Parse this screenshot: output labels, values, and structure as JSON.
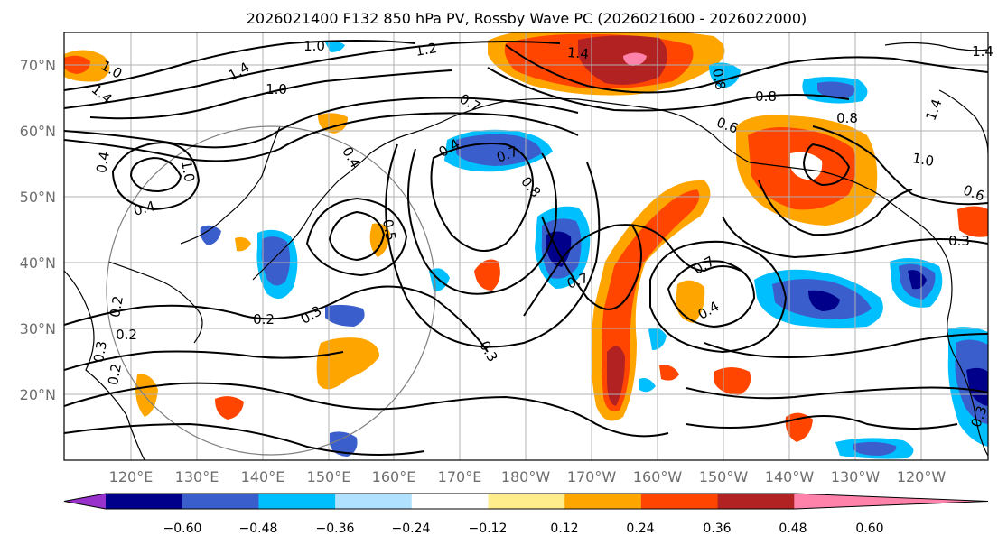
{
  "title": "2026021400 F132 850 hPa PV, Rossby Wave PC (2026021600 - 2026022000)",
  "lat_labels": [
    "70°N",
    "60°N",
    "50°N",
    "40°N",
    "30°N",
    "20°N"
  ],
  "lon_labels": [
    "120°E",
    "130°E",
    "140°E",
    "150°E",
    "160°E",
    "170°E",
    "180°W",
    "170°W",
    "160°W",
    "150°W",
    "140°W",
    "130°W",
    "120°W"
  ],
  "colorbar": {
    "ticks": [
      "−0.60",
      "−0.48",
      "−0.36",
      "−0.24",
      "−0.12",
      "0.12",
      "0.24",
      "0.36",
      "0.48",
      "0.60"
    ],
    "colors": [
      "#9932cc",
      "#00008b",
      "#3a5fcd",
      "#00bfff",
      "#b0e2ff",
      "#ffffff",
      "#ffec8b",
      "#ffa500",
      "#ff4500",
      "#b22222",
      "#ff82ab"
    ]
  },
  "contour_labels": [
    "1.0",
    "1.2",
    "1.4",
    "1.4",
    "1.0",
    "1.4",
    "1.4",
    "1.0",
    "0.7",
    "0.8",
    "0.8",
    "0.6",
    "0.8",
    "1.0",
    "0.6",
    "0.4",
    "0.7",
    "0.8",
    "0.4",
    "1.0",
    "0.4",
    "0.4",
    "0.7",
    "0.5",
    "0.3",
    "0.7",
    "0.4",
    "0.3",
    "0.3",
    "0.2",
    "0.2",
    "0.3",
    "0.2",
    "0.2",
    "0.3",
    "1.4"
  ]
}
